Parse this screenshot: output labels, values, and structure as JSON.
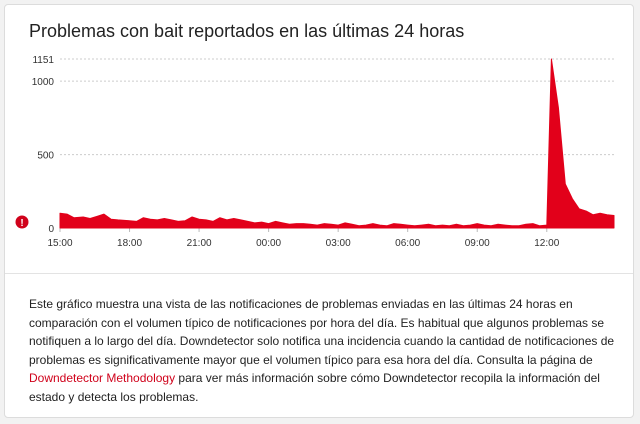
{
  "title": "Problemas con bait reportados en las últimas 24 horas",
  "alert_marker": "!",
  "description": {
    "before_link": "Este gráfico muestra una vista de las notificaciones de problemas enviadas en las últimas 24 horas en comparación con el volumen típico de notificaciones por hora del día. Es habitual que algunos problemas se notifiquen a lo largo del día. Downdetector solo notifica una incidencia cuando la cantidad de notificaciones de problemas es significativamente mayor que el volumen típico para esa hora del día. Consulta la página de ",
    "link_text": "Downdetector Methodology",
    "after_link": " para ver más información sobre cómo Downdetector recopila la información del estado y detecta los problemas."
  },
  "colors": {
    "series": "#e2001a",
    "gridline": "#cccccc",
    "alert": "#d0021b",
    "link": "#d0021b"
  },
  "chart_data": {
    "type": "area",
    "title": "Problemas con bait reportados en las últimas 24 horas",
    "xlabel": "",
    "ylabel": "",
    "ylim": [
      0,
      1151
    ],
    "yticks": [
      0,
      500,
      1000,
      1151
    ],
    "xticks": [
      "15:00",
      "18:00",
      "21:00",
      "00:00",
      "03:00",
      "06:00",
      "09:00",
      "12:00"
    ],
    "grid": true,
    "x_unit": "hours since 15:00",
    "x": [
      0,
      0.3,
      0.6,
      1,
      1.3,
      1.6,
      1.9,
      2.2,
      2.5,
      3,
      3.3,
      3.6,
      3.9,
      4.2,
      4.5,
      4.8,
      5.1,
      5.4,
      5.7,
      6,
      6.3,
      6.6,
      6.9,
      7.2,
      7.5,
      7.8,
      8.1,
      8.4,
      8.7,
      9,
      9.3,
      9.6,
      9.9,
      10.2,
      10.5,
      10.8,
      11.1,
      11.4,
      11.7,
      12,
      12.3,
      12.6,
      12.9,
      13.2,
      13.5,
      13.8,
      14.1,
      14.4,
      14.7,
      15,
      15.3,
      15.6,
      15.9,
      16.2,
      16.5,
      16.8,
      17.1,
      17.4,
      17.7,
      18,
      18.3,
      18.6,
      18.9,
      19.2,
      19.5,
      19.8,
      20.1,
      20.4,
      20.7,
      21,
      21.2,
      21.5,
      21.8,
      22.1,
      22.4,
      22.7,
      23,
      23.3,
      23.6,
      23.9
    ],
    "values": [
      100,
      95,
      70,
      75,
      65,
      80,
      95,
      60,
      55,
      50,
      45,
      70,
      60,
      55,
      65,
      55,
      45,
      50,
      75,
      60,
      55,
      45,
      70,
      55,
      65,
      55,
      45,
      35,
      40,
      30,
      45,
      35,
      25,
      30,
      30,
      25,
      20,
      30,
      25,
      20,
      35,
      25,
      15,
      20,
      30,
      20,
      15,
      30,
      25,
      20,
      15,
      20,
      25,
      15,
      20,
      15,
      25,
      15,
      20,
      30,
      20,
      15,
      25,
      20,
      15,
      15,
      25,
      30,
      15,
      20,
      1151,
      820,
      300,
      200,
      130,
      115,
      90,
      100,
      90,
      85
    ]
  }
}
